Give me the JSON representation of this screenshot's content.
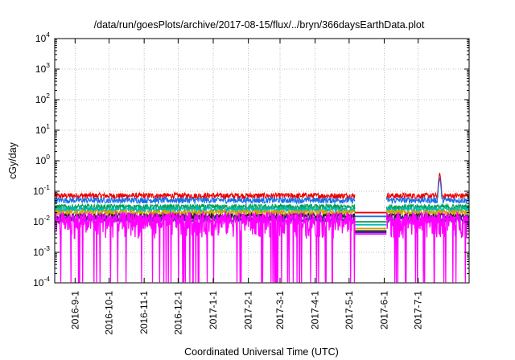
{
  "chart_data": {
    "type": "line",
    "title": "/data/run/goesPlots/archive/2017-08-15/flux/../bryn/366daysEarthData.plot",
    "xlabel": "Coordinated Universal Time (UTC)",
    "ylabel": "cGy/day",
    "yscale": "log",
    "ylim": [
      0.0001,
      10000
    ],
    "xlim": [
      "2016-08-14",
      "2017-08-15"
    ],
    "grid": true,
    "legend": "none",
    "yticks": [
      {
        "value": 0.0001,
        "base": "10",
        "exp": "-4"
      },
      {
        "value": 0.001,
        "base": "10",
        "exp": "-3"
      },
      {
        "value": 0.01,
        "base": "10",
        "exp": "-2"
      },
      {
        "value": 0.1,
        "base": "10",
        "exp": "-1"
      },
      {
        "value": 1,
        "base": "10",
        "exp": "0"
      },
      {
        "value": 10,
        "base": "10",
        "exp": "1"
      },
      {
        "value": 100,
        "base": "10",
        "exp": "2"
      },
      {
        "value": 1000,
        "base": "10",
        "exp": "3"
      },
      {
        "value": 10000,
        "base": "10",
        "exp": "4"
      }
    ],
    "xticks": [
      "2016-9-1",
      "2016-10-1",
      "2016-11-1",
      "2016-12-1",
      "2017-1-1",
      "2017-2-1",
      "2017-3-1",
      "2017-4-1",
      "2017-5-1",
      "2017-6-1",
      "2017-7-1"
    ],
    "gap": {
      "start": "2017-05-06",
      "end": "2017-06-03"
    },
    "spike": {
      "date": "2017-07-20",
      "value": 0.4
    },
    "series": [
      {
        "color": "#ee0000",
        "baseline": 0.07,
        "gap_level": 0.02
      },
      {
        "color": "#1a6fe8",
        "baseline": 0.05,
        "gap_level": 0.015
      },
      {
        "color": "#00a050",
        "baseline": 0.03,
        "gap_level": 0.01
      },
      {
        "color": "#00b8b8",
        "baseline": 0.025,
        "gap_level": 0.008
      },
      {
        "color": "#d4a000",
        "baseline": 0.02,
        "gap_level": 0.006
      },
      {
        "color": "#222222",
        "baseline": 0.015,
        "gap_level": 0.005
      },
      {
        "color": "#3030a0",
        "baseline": 0.012,
        "gap_level": 0.0045
      },
      {
        "color": "#ff00ff",
        "baseline": 0.008,
        "gap_level": 0.004
      }
    ]
  }
}
